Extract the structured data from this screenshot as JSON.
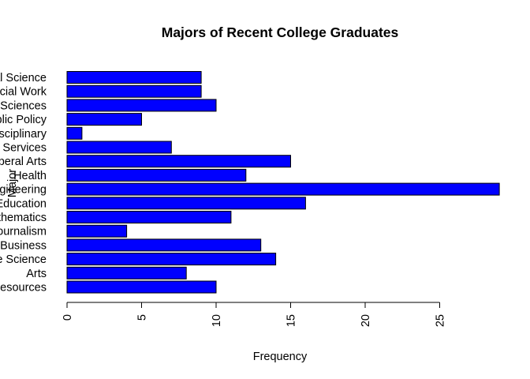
{
  "chart_data": {
    "type": "bar",
    "orientation": "horizontal",
    "title": "Majors of Recent College Graduates",
    "xlabel": "Frequency",
    "ylabel": "Major",
    "xlim": [
      0,
      29
    ],
    "xticks": [
      0,
      5,
      10,
      15,
      20,
      25
    ],
    "bar_color": "#0000FF",
    "categories": [
      "Agriculture & Natural Resources",
      "Arts",
      "Biology & Life Science",
      "Business",
      "Communications & Journalism",
      "Computers & Mathematics",
      "Education",
      "Engineering",
      "Health",
      "Humanities & Liberal Arts",
      "Industrial Arts & Consumer Services",
      "Interdisciplinary",
      "Law & Public Policy",
      "Physical Sciences",
      "Psychology & Social Work",
      "Social Science"
    ],
    "values": [
      10,
      8,
      14,
      13,
      4,
      11,
      16,
      29,
      12,
      15,
      7,
      1,
      5,
      10,
      9,
      9
    ]
  }
}
